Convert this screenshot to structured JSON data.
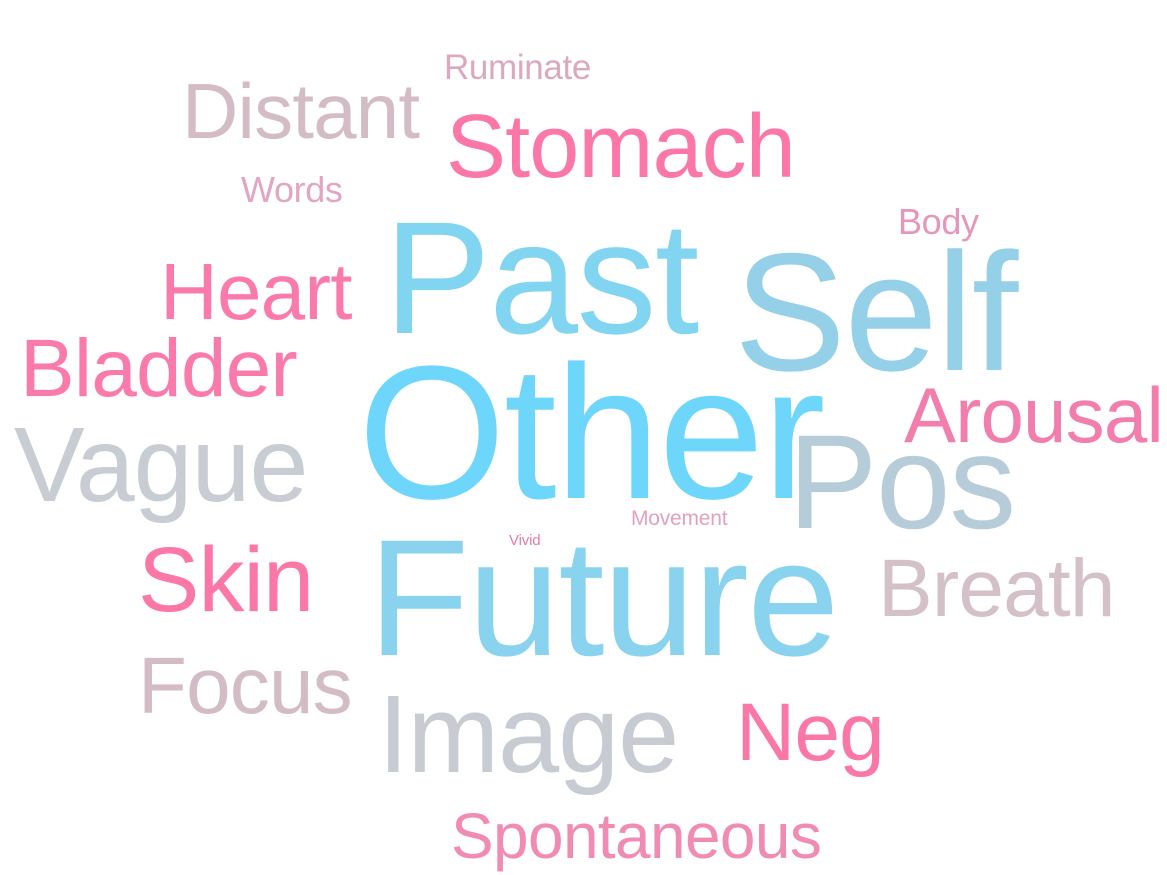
{
  "words": [
    {
      "text": "Ruminate",
      "color": "#DBA8C0"
    },
    {
      "text": "Distant",
      "color": "#D4BCC6"
    },
    {
      "text": "Stomach",
      "color": "#FB77A8"
    },
    {
      "text": "Words",
      "color": "#E2A6C4"
    },
    {
      "text": "Body",
      "color": "#E596BA"
    },
    {
      "text": "Past",
      "color": "#82D5F1"
    },
    {
      "text": "Heart",
      "color": "#FB7AAC"
    },
    {
      "text": "Self",
      "color": "#94D0E8"
    },
    {
      "text": "Bladder",
      "color": "#FB7AAC"
    },
    {
      "text": "Other",
      "color": "#6FD6FB"
    },
    {
      "text": "Arousal",
      "color": "#F17EAD"
    },
    {
      "text": "Vague",
      "color": "#C7CDD2"
    },
    {
      "text": "Pos",
      "color": "#B6CDD9"
    },
    {
      "text": "Movement",
      "color": "#E2A1C0"
    },
    {
      "text": "Vivid",
      "color": "#E07CAA"
    },
    {
      "text": "Skin",
      "color": "#FB77A8"
    },
    {
      "text": "Future",
      "color": "#8AD3EE"
    },
    {
      "text": "Breath",
      "color": "#D4C0C8"
    },
    {
      "text": "Focus",
      "color": "#D4BCC6"
    },
    {
      "text": "Image",
      "color": "#C6CCD2"
    },
    {
      "text": "Neg",
      "color": "#FB77A8"
    },
    {
      "text": "Spontaneous",
      "color": "#F08CB4"
    }
  ]
}
